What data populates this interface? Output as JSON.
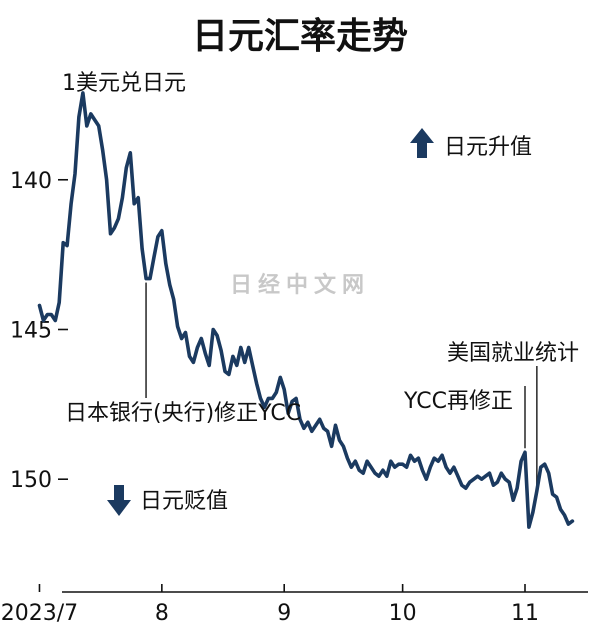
{
  "chart_data": {
    "type": "line",
    "title": "日元汇率走势",
    "ylabel": "1美元兑日元",
    "y_inverted": true,
    "ylim": [
      153.7,
      136
    ],
    "yticks": [
      140,
      145,
      150
    ],
    "xticks": [
      {
        "label": "2023/7",
        "x": 0
      },
      {
        "label": "8",
        "x": 31
      },
      {
        "label": "9",
        "x": 62
      },
      {
        "label": "10",
        "x": 92
      },
      {
        "label": "11",
        "x": 123
      }
    ],
    "xlim": [
      -10,
      142
    ],
    "series": [
      {
        "points": [
          [
            0,
            144.2
          ],
          [
            1,
            144.7
          ],
          [
            2,
            144.5
          ],
          [
            3,
            144.5
          ],
          [
            4,
            144.7
          ],
          [
            5,
            144.1
          ],
          [
            6,
            142.1
          ],
          [
            7,
            142.2
          ],
          [
            8,
            140.8
          ],
          [
            9,
            139.8
          ],
          [
            10,
            137.9
          ],
          [
            11,
            137.1
          ],
          [
            12,
            138.2
          ],
          [
            13,
            137.8
          ],
          [
            14,
            138.0
          ],
          [
            15,
            138.2
          ],
          [
            16,
            139.0
          ],
          [
            17,
            140.0
          ],
          [
            18,
            141.8
          ],
          [
            19,
            141.6
          ],
          [
            20,
            141.3
          ],
          [
            21,
            140.6
          ],
          [
            22,
            139.6
          ],
          [
            23,
            139.1
          ],
          [
            24,
            140.8
          ],
          [
            25,
            140.6
          ],
          [
            26,
            142.3
          ],
          [
            27,
            143.3
          ],
          [
            28,
            143.3
          ],
          [
            29,
            142.6
          ],
          [
            30,
            141.9
          ],
          [
            31,
            141.7
          ],
          [
            32,
            142.8
          ],
          [
            33,
            143.5
          ],
          [
            34,
            144.0
          ],
          [
            35,
            144.9
          ],
          [
            36,
            145.3
          ],
          [
            37,
            145.1
          ],
          [
            38,
            145.9
          ],
          [
            39,
            146.1
          ],
          [
            40,
            145.6
          ],
          [
            41,
            145.3
          ],
          [
            42,
            145.8
          ],
          [
            43,
            146.2
          ],
          [
            44,
            145.0
          ],
          [
            45,
            145.2
          ],
          [
            46,
            145.7
          ],
          [
            47,
            146.4
          ],
          [
            48,
            146.5
          ],
          [
            49,
            145.9
          ],
          [
            50,
            146.2
          ],
          [
            51,
            145.6
          ],
          [
            52,
            146.1
          ],
          [
            53,
            145.6
          ],
          [
            54,
            146.2
          ],
          [
            55,
            146.8
          ],
          [
            56,
            147.3
          ],
          [
            57,
            147.6
          ],
          [
            58,
            147.3
          ],
          [
            59,
            147.3
          ],
          [
            60,
            147.1
          ],
          [
            61,
            146.6
          ],
          [
            62,
            147.0
          ],
          [
            63,
            147.8
          ],
          [
            64,
            147.4
          ],
          [
            65,
            147.3
          ],
          [
            66,
            148.0
          ],
          [
            67,
            148.3
          ],
          [
            68,
            148.1
          ],
          [
            69,
            148.4
          ],
          [
            70,
            148.2
          ],
          [
            71,
            148.0
          ],
          [
            72,
            148.3
          ],
          [
            73,
            148.4
          ],
          [
            74,
            148.9
          ],
          [
            75,
            148.2
          ],
          [
            76,
            148.7
          ],
          [
            77,
            148.9
          ],
          [
            78,
            149.3
          ],
          [
            79,
            149.6
          ],
          [
            80,
            149.4
          ],
          [
            81,
            149.7
          ],
          [
            82,
            149.8
          ],
          [
            83,
            149.4
          ],
          [
            84,
            149.6
          ],
          [
            85,
            149.8
          ],
          [
            86,
            149.9
          ],
          [
            87,
            149.7
          ],
          [
            88,
            149.9
          ],
          [
            89,
            149.4
          ],
          [
            90,
            149.6
          ],
          [
            91,
            149.5
          ],
          [
            92,
            149.5
          ],
          [
            93,
            149.6
          ],
          [
            94,
            149.2
          ],
          [
            95,
            149.4
          ],
          [
            96,
            149.3
          ],
          [
            97,
            149.7
          ],
          [
            98,
            150.0
          ],
          [
            99,
            149.6
          ],
          [
            100,
            149.3
          ],
          [
            101,
            149.4
          ],
          [
            102,
            149.2
          ],
          [
            103,
            149.6
          ],
          [
            104,
            149.8
          ],
          [
            105,
            149.6
          ],
          [
            106,
            149.9
          ],
          [
            107,
            150.2
          ],
          [
            108,
            150.3
          ],
          [
            109,
            150.1
          ],
          [
            110,
            150.0
          ],
          [
            111,
            149.9
          ],
          [
            112,
            150.0
          ],
          [
            113,
            149.9
          ],
          [
            114,
            149.8
          ],
          [
            115,
            150.2
          ],
          [
            116,
            150.1
          ],
          [
            117,
            149.8
          ],
          [
            118,
            150.0
          ],
          [
            119,
            150.1
          ],
          [
            120,
            150.7
          ],
          [
            121,
            150.3
          ],
          [
            122,
            149.4
          ],
          [
            123,
            149.1
          ],
          [
            124,
            151.6
          ],
          [
            125,
            151.1
          ],
          [
            126,
            150.4
          ],
          [
            127,
            149.6
          ],
          [
            128,
            149.5
          ],
          [
            129,
            149.8
          ],
          [
            130,
            150.5
          ],
          [
            131,
            150.6
          ],
          [
            132,
            151.0
          ],
          [
            133,
            151.2
          ],
          [
            134,
            151.5
          ],
          [
            135,
            151.4
          ]
        ]
      }
    ],
    "annotations": [
      {
        "text": "日本银行(央行)修正YCC",
        "x": 27
      },
      {
        "text": "YCC再修正",
        "x": 123
      },
      {
        "text": "美国就业统计",
        "x": 126
      }
    ],
    "legend_up": "日元升值",
    "legend_down": "日元贬值"
  },
  "watermark": "日经中文网"
}
